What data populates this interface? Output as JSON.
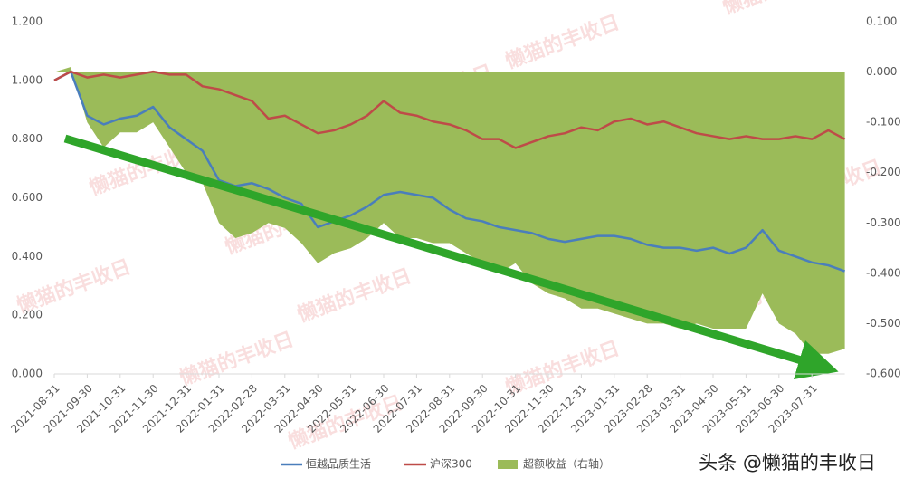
{
  "chart_data": {
    "type": "line",
    "categories": [
      "2021-08-31",
      null,
      "2021-09-30",
      null,
      "2021-10-31",
      null,
      "2021-11-30",
      null,
      "2021-12-31",
      null,
      "2022-01-31",
      null,
      "2022-02-28",
      null,
      "2022-03-31",
      null,
      "2022-04-30",
      null,
      "2022-05-31",
      null,
      "2022-06-30",
      null,
      "2022-07-31",
      null,
      "2022-08-31",
      null,
      "2022-09-30",
      null,
      "2022-10-31",
      null,
      "2022-11-30",
      null,
      "2022-12-31",
      null,
      "2023-01-31",
      null,
      "2023-02-28",
      null,
      "2023-03-31",
      null,
      "2023-04-30",
      null,
      "2023-05-31",
      null,
      "2023-06-30",
      null,
      "2023-07-31",
      null,
      null
    ],
    "series": [
      {
        "name": "恒越品质生活",
        "color": "#4a7ebb",
        "type": "line",
        "values": [
          1.0,
          1.03,
          0.88,
          0.85,
          0.87,
          0.88,
          0.91,
          0.84,
          0.8,
          0.76,
          0.66,
          0.64,
          0.65,
          0.63,
          0.6,
          0.58,
          0.5,
          0.52,
          0.54,
          0.57,
          0.61,
          0.62,
          0.61,
          0.6,
          0.56,
          0.53,
          0.52,
          0.5,
          0.49,
          0.48,
          0.46,
          0.45,
          0.46,
          0.47,
          0.47,
          0.46,
          0.44,
          0.43,
          0.43,
          0.42,
          0.43,
          0.41,
          0.43,
          0.49,
          0.42,
          0.4,
          0.38,
          0.37,
          0.35
        ]
      },
      {
        "name": "沪深300",
        "color": "#be4b48",
        "type": "line",
        "values": [
          1.0,
          1.03,
          1.01,
          1.02,
          1.01,
          1.02,
          1.03,
          1.02,
          1.02,
          0.98,
          0.97,
          0.95,
          0.93,
          0.87,
          0.88,
          0.85,
          0.82,
          0.83,
          0.85,
          0.88,
          0.93,
          0.89,
          0.88,
          0.86,
          0.85,
          0.83,
          0.8,
          0.8,
          0.77,
          0.79,
          0.81,
          0.82,
          0.84,
          0.83,
          0.86,
          0.87,
          0.85,
          0.86,
          0.84,
          0.82,
          0.81,
          0.8,
          0.81,
          0.8,
          0.8,
          0.81,
          0.8,
          0.83,
          0.8
        ]
      },
      {
        "name": "超额收益（右轴）",
        "color": "#9bbb59",
        "type": "area",
        "axis": "y2",
        "values": [
          0,
          0.01,
          -0.1,
          -0.15,
          -0.12,
          -0.12,
          -0.1,
          -0.15,
          -0.2,
          -0.22,
          -0.3,
          -0.33,
          -0.32,
          -0.3,
          -0.31,
          -0.34,
          -0.38,
          -0.36,
          -0.35,
          -0.33,
          -0.3,
          -0.33,
          -0.33,
          -0.34,
          -0.34,
          -0.36,
          -0.38,
          -0.4,
          -0.38,
          -0.42,
          -0.44,
          -0.45,
          -0.47,
          -0.47,
          -0.48,
          -0.49,
          -0.5,
          -0.5,
          -0.51,
          -0.5,
          -0.51,
          -0.51,
          -0.51,
          -0.44,
          -0.5,
          -0.52,
          -0.56,
          -0.56,
          -0.55
        ]
      }
    ],
    "ylim": [
      0,
      1.2
    ],
    "yticks": [
      {
        "value": 0,
        "label": "0.000"
      },
      {
        "value": 0.2,
        "label": "0.200"
      },
      {
        "value": 0.4,
        "label": "0.400"
      },
      {
        "value": 0.6,
        "label": "0.600"
      },
      {
        "value": 0.8,
        "label": "0.800"
      },
      {
        "value": 1,
        "label": "1.000"
      },
      {
        "value": 1.2,
        "label": "1.200"
      }
    ],
    "y2lim": [
      -0.6,
      0.1
    ],
    "y2ticks": [
      {
        "value": -0.6,
        "label": "-0.600"
      },
      {
        "value": -0.5,
        "label": "-0.500"
      },
      {
        "value": -0.4,
        "label": "-0.400"
      },
      {
        "value": -0.3,
        "label": "-0.300"
      },
      {
        "value": -0.2,
        "label": "-0.200"
      },
      {
        "value": -0.1,
        "label": "-0.100"
      },
      {
        "value": 0,
        "label": "0.000"
      },
      {
        "value": 0.1,
        "label": "0.100"
      }
    ],
    "legend": "bottom",
    "watermark": "头条 @懒猫的丰收日",
    "background_watermark": "懒猫的丰收日"
  }
}
